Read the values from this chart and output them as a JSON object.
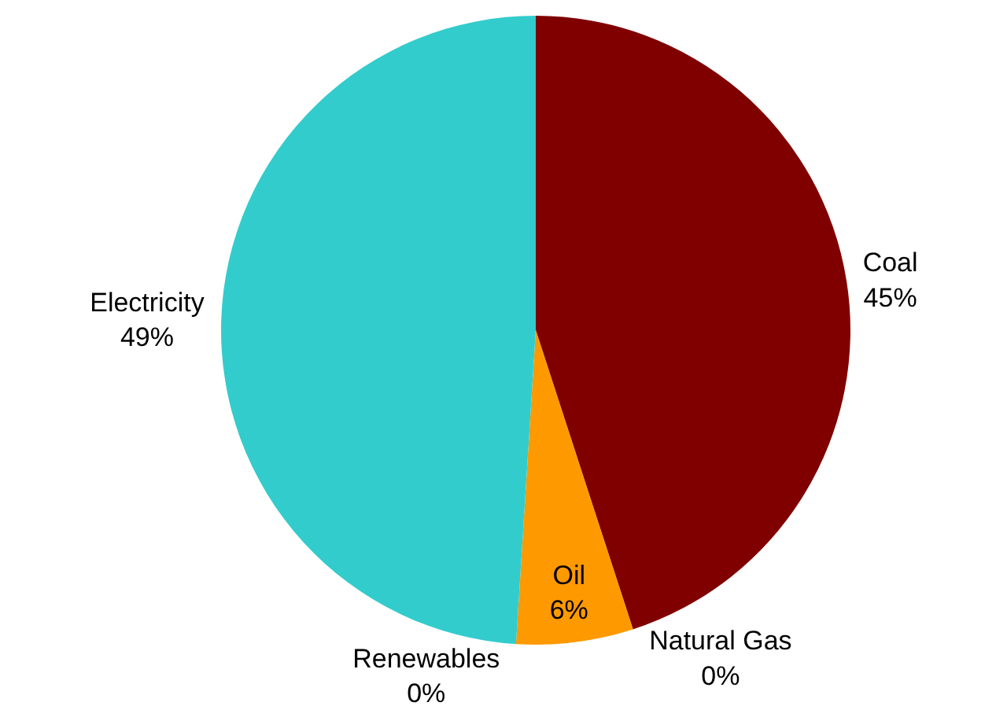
{
  "chart_data": {
    "type": "pie",
    "categories": [
      "Coal",
      "Natural Gas",
      "Oil",
      "Renewables",
      "Electricity"
    ],
    "values": [
      45,
      0,
      6,
      0,
      49
    ],
    "value_labels": [
      "45%",
      "0%",
      "6%",
      "0%",
      "49%"
    ],
    "colors": [
      "#800000",
      "#8c8c8c",
      "#ff9900",
      "#4f81bd",
      "#33cccc"
    ],
    "legend": false
  }
}
